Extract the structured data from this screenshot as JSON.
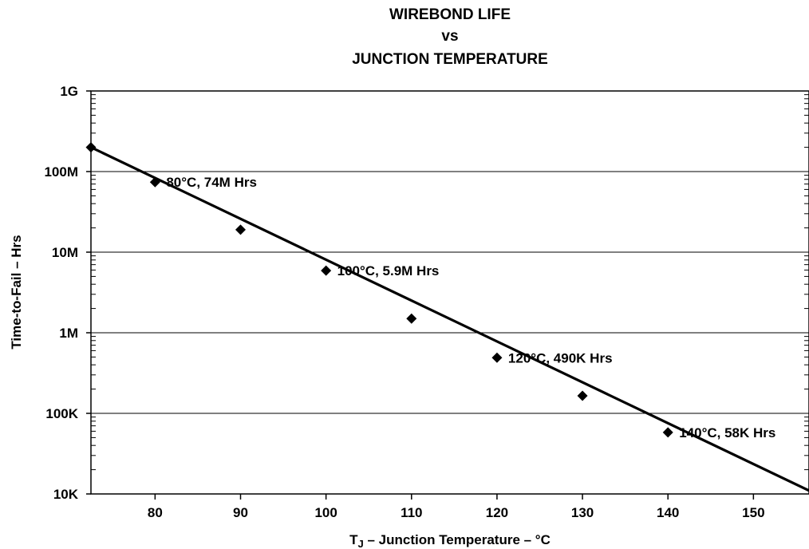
{
  "chart_data": {
    "type": "line",
    "title_lines": [
      "WIREBOND LIFE",
      "vs",
      "JUNCTION TEMPERATURE"
    ],
    "xlabel_prefix": "T",
    "xlabel_subscript": "J",
    "xlabel_rest": " – Junction Temperature – °C",
    "ylabel": "Time-to-Fail – Hrs",
    "xlim": [
      72.5,
      156.5
    ],
    "ylim": [
      10000,
      1000000000
    ],
    "yscale": "log",
    "grid": "horizontal",
    "x_ticks": [
      80,
      90,
      100,
      110,
      120,
      130,
      140,
      150
    ],
    "x_tick_labels": [
      "80",
      "90",
      "100",
      "110",
      "120",
      "130",
      "140",
      "150"
    ],
    "y_ticks": [
      10000,
      100000,
      1000000,
      10000000,
      100000000,
      1000000000
    ],
    "y_tick_labels": [
      "10K",
      "100K",
      "1M",
      "10M",
      "100M",
      "1G"
    ],
    "line_x": [
      72.5,
      156.5
    ],
    "line_y": [
      200000000,
      11000
    ],
    "points": [
      {
        "x": 72.5,
        "y": 200000000
      },
      {
        "x": 80,
        "y": 74000000
      },
      {
        "x": 90,
        "y": 19000000
      },
      {
        "x": 100,
        "y": 5900000
      },
      {
        "x": 110,
        "y": 1500000
      },
      {
        "x": 120,
        "y": 490000
      },
      {
        "x": 130,
        "y": 165000
      },
      {
        "x": 140,
        "y": 58000
      }
    ],
    "annotations": [
      {
        "text": "80°C, 74M Hrs",
        "x": 80,
        "y": 74000000
      },
      {
        "text": "100°C, 5.9M Hrs",
        "x": 100,
        "y": 5900000
      },
      {
        "text": "120°C, 490K Hrs",
        "x": 120,
        "y": 490000
      },
      {
        "text": "140°C, 58K Hrs",
        "x": 140,
        "y": 58000
      }
    ],
    "line_color": "#000000"
  }
}
